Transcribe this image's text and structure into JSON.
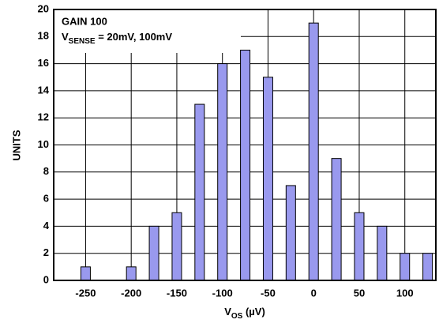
{
  "chart_data": {
    "type": "bar",
    "annotation_line1": "GAIN 100",
    "annotation_line2": {
      "main": "V",
      "sub": "SENSE",
      "rest": " = 20mV, 100mV"
    },
    "xlabel": {
      "main": "V",
      "sub": "OS",
      "rest": " (µV)"
    },
    "ylabel": "UNITS",
    "x": [
      -250,
      -225,
      -200,
      -175,
      -150,
      -125,
      -100,
      -75,
      -50,
      -25,
      0,
      25,
      50,
      75,
      100,
      125
    ],
    "values": [
      1,
      0,
      1,
      4,
      5,
      13,
      16,
      17,
      15,
      7,
      19,
      9,
      5,
      4,
      2,
      2
    ],
    "color": "#9999ee",
    "xlim": [
      -285,
      134
    ],
    "xticks": [
      -250,
      -200,
      -150,
      -100,
      -50,
      0,
      50,
      100
    ],
    "ylim": [
      0,
      20
    ],
    "yticks": [
      0,
      2,
      4,
      6,
      8,
      10,
      12,
      14,
      16,
      18,
      20
    ],
    "grid": true
  }
}
